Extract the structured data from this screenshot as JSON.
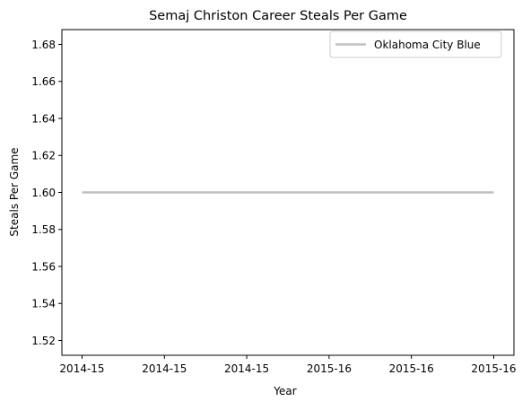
{
  "chart_data": {
    "type": "line",
    "title": "Semaj Christon Career Steals Per Game",
    "xlabel": "Year",
    "ylabel": "Steals Per Game",
    "x": [
      "2014-15",
      "2014-15",
      "2014-15",
      "2015-16",
      "2015-16",
      "2015-16"
    ],
    "series": [
      {
        "name": "Oklahoma City Blue",
        "color": "#bfbfbf",
        "values": [
          1.6,
          1.6,
          1.6,
          1.6,
          1.6,
          1.6
        ]
      }
    ],
    "ylim": [
      1.512,
      1.688
    ],
    "yticks": [
      "1.52",
      "1.54",
      "1.56",
      "1.58",
      "1.60",
      "1.62",
      "1.64",
      "1.66",
      "1.68"
    ],
    "grid": false,
    "legend_position": "top-right"
  }
}
